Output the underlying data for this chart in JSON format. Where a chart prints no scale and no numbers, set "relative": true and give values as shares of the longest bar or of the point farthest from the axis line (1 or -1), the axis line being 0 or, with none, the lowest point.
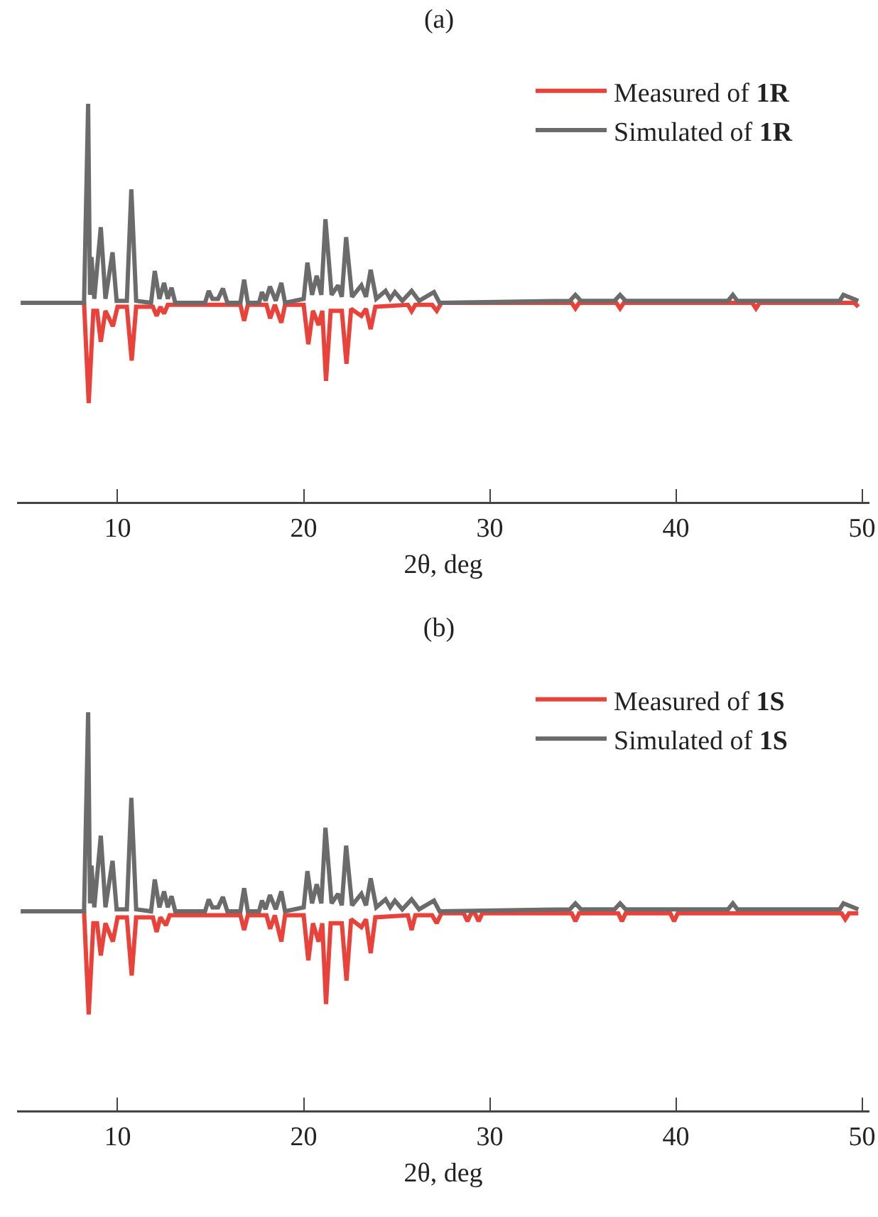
{
  "chart_data": [
    {
      "type": "line",
      "title": "(a)",
      "xlabel": "2θ, deg",
      "xlim": [
        4.6,
        50.4
      ],
      "xticks": [
        10,
        20,
        30,
        40,
        50
      ],
      "relative": true,
      "legend": "top right",
      "series": [
        {
          "name": "Measured of 1R",
          "color": "#e8423a",
          "x": [
            4.8,
            8.2,
            8.45,
            8.7,
            8.9,
            9.1,
            9.35,
            9.75,
            10.0,
            10.5,
            10.76,
            11.0,
            11.9,
            12.1,
            12.3,
            12.5,
            12.7,
            16.6,
            16.8,
            17.0,
            18.0,
            18.2,
            18.45,
            18.8,
            19.0,
            20.0,
            20.25,
            20.5,
            20.8,
            21.0,
            21.2,
            21.45,
            22.05,
            22.3,
            22.55,
            23.1,
            23.35,
            23.6,
            23.85,
            25.6,
            25.8,
            26.0,
            26.9,
            27.15,
            27.4,
            34.4,
            34.6,
            34.8,
            36.8,
            37.0,
            37.2,
            44.1,
            44.3,
            44.5,
            49.6,
            49.8
          ],
          "values": [
            0.5,
            0.5,
            0.248,
            0.48,
            0.48,
            0.402,
            0.48,
            0.441,
            0.49,
            0.49,
            0.355,
            0.49,
            0.49,
            0.467,
            0.49,
            0.473,
            0.495,
            0.495,
            0.455,
            0.495,
            0.495,
            0.461,
            0.495,
            0.45,
            0.495,
            0.495,
            0.396,
            0.48,
            0.444,
            0.48,
            0.304,
            0.48,
            0.48,
            0.347,
            0.485,
            0.467,
            0.485,
            0.434,
            0.49,
            0.495,
            0.479,
            0.495,
            0.495,
            0.48,
            0.5,
            0.5,
            0.486,
            0.5,
            0.5,
            0.486,
            0.5,
            0.5,
            0.486,
            0.5,
            0.5,
            0.49
          ]
        },
        {
          "name": "Simulated of 1R",
          "color": "#6b6b6b",
          "x": [
            4.8,
            8.2,
            8.42,
            8.52,
            8.6,
            8.75,
            9.1,
            9.35,
            9.73,
            9.95,
            10.5,
            10.74,
            11.0,
            11.8,
            12.0,
            12.25,
            12.5,
            12.7,
            12.9,
            13.1,
            14.7,
            14.9,
            15.1,
            15.4,
            15.66,
            15.9,
            16.6,
            16.8,
            17.0,
            17.6,
            17.76,
            17.95,
            18.19,
            18.5,
            18.8,
            19.0,
            20.0,
            20.2,
            20.45,
            20.7,
            20.95,
            21.17,
            21.5,
            21.85,
            22.05,
            22.28,
            22.6,
            23.1,
            23.35,
            23.6,
            23.9,
            24.4,
            24.65,
            24.9,
            25.3,
            25.8,
            26.2,
            27.0,
            27.3,
            34.3,
            34.6,
            34.9,
            36.7,
            37.0,
            37.3,
            42.8,
            43.06,
            43.3,
            48.8,
            49.0,
            49.8
          ],
          "values": [
            0.5,
            0.5,
            1.0,
            0.52,
            0.615,
            0.51,
            0.69,
            0.51,
            0.627,
            0.505,
            0.505,
            0.785,
            0.505,
            0.5,
            0.58,
            0.51,
            0.55,
            0.51,
            0.538,
            0.5,
            0.5,
            0.53,
            0.51,
            0.51,
            0.536,
            0.5,
            0.5,
            0.558,
            0.5,
            0.5,
            0.527,
            0.505,
            0.541,
            0.505,
            0.55,
            0.5,
            0.51,
            0.601,
            0.52,
            0.568,
            0.52,
            0.71,
            0.52,
            0.544,
            0.515,
            0.665,
            0.515,
            0.544,
            0.515,
            0.583,
            0.51,
            0.53,
            0.51,
            0.527,
            0.505,
            0.53,
            0.505,
            0.527,
            0.5,
            0.505,
            0.52,
            0.505,
            0.505,
            0.52,
            0.505,
            0.505,
            0.52,
            0.505,
            0.505,
            0.52,
            0.505
          ]
        }
      ]
    },
    {
      "type": "line",
      "title": "(b)",
      "xlabel": "2θ, deg",
      "xlim": [
        4.6,
        50.4
      ],
      "xticks": [
        10,
        20,
        30,
        40,
        50
      ],
      "relative": true,
      "legend": "top right",
      "series": [
        {
          "name": "Measured of 1S",
          "color": "#e8423a",
          "x": [
            4.8,
            8.2,
            8.45,
            8.7,
            8.9,
            9.1,
            9.35,
            9.75,
            10.0,
            10.5,
            10.76,
            11.0,
            11.9,
            12.1,
            12.3,
            12.6,
            12.8,
            16.6,
            16.8,
            17.0,
            18.0,
            18.2,
            18.45,
            18.8,
            19.0,
            20.0,
            20.25,
            20.5,
            20.8,
            21.0,
            21.2,
            21.45,
            22.05,
            22.3,
            22.55,
            23.1,
            23.35,
            23.6,
            23.85,
            25.6,
            25.8,
            26.0,
            26.9,
            27.15,
            27.4,
            28.6,
            28.8,
            29.0,
            29.2,
            29.4,
            29.6,
            34.4,
            34.6,
            34.8,
            36.9,
            37.1,
            37.3,
            39.7,
            39.9,
            40.1,
            48.9,
            49.1,
            49.3,
            49.8
          ],
          "values": [
            0.5,
            0.5,
            0.241,
            0.47,
            0.47,
            0.389,
            0.47,
            0.424,
            0.485,
            0.485,
            0.339,
            0.485,
            0.485,
            0.448,
            0.485,
            0.465,
            0.49,
            0.49,
            0.453,
            0.49,
            0.49,
            0.456,
            0.49,
            0.424,
            0.49,
            0.49,
            0.377,
            0.47,
            0.424,
            0.47,
            0.267,
            0.47,
            0.47,
            0.326,
            0.48,
            0.46,
            0.48,
            0.395,
            0.485,
            0.49,
            0.453,
            0.49,
            0.49,
            0.47,
            0.495,
            0.495,
            0.475,
            0.495,
            0.495,
            0.475,
            0.495,
            0.495,
            0.475,
            0.495,
            0.495,
            0.475,
            0.495,
            0.495,
            0.475,
            0.495,
            0.495,
            0.48,
            0.495,
            0.495
          ]
        },
        {
          "name": "Simulated of 1S",
          "color": "#6b6b6b",
          "x": [
            4.8,
            8.2,
            8.42,
            8.52,
            8.6,
            8.75,
            9.1,
            9.35,
            9.73,
            9.95,
            10.5,
            10.74,
            11.0,
            11.8,
            12.0,
            12.25,
            12.5,
            12.7,
            12.9,
            13.1,
            14.7,
            14.9,
            15.1,
            15.4,
            15.66,
            15.9,
            16.6,
            16.8,
            17.0,
            17.6,
            17.76,
            17.95,
            18.19,
            18.5,
            18.8,
            19.0,
            20.0,
            20.2,
            20.45,
            20.7,
            20.95,
            21.17,
            21.5,
            21.85,
            22.05,
            22.28,
            22.6,
            23.1,
            23.35,
            23.6,
            23.9,
            24.4,
            24.65,
            24.9,
            25.3,
            25.8,
            26.2,
            27.0,
            27.3,
            34.3,
            34.6,
            34.9,
            36.7,
            37.0,
            37.3,
            42.8,
            43.06,
            43.3,
            48.8,
            49.0,
            49.8
          ],
          "values": [
            0.5,
            0.5,
            1.0,
            0.52,
            0.615,
            0.51,
            0.69,
            0.51,
            0.627,
            0.505,
            0.505,
            0.785,
            0.505,
            0.5,
            0.58,
            0.51,
            0.55,
            0.51,
            0.538,
            0.5,
            0.5,
            0.53,
            0.51,
            0.51,
            0.536,
            0.5,
            0.5,
            0.558,
            0.5,
            0.5,
            0.527,
            0.505,
            0.541,
            0.505,
            0.55,
            0.5,
            0.51,
            0.601,
            0.52,
            0.568,
            0.52,
            0.71,
            0.52,
            0.544,
            0.515,
            0.665,
            0.515,
            0.544,
            0.515,
            0.583,
            0.51,
            0.53,
            0.51,
            0.527,
            0.505,
            0.53,
            0.505,
            0.527,
            0.5,
            0.505,
            0.52,
            0.505,
            0.505,
            0.52,
            0.505,
            0.505,
            0.52,
            0.505,
            0.505,
            0.52,
            0.505
          ]
        }
      ]
    }
  ]
}
